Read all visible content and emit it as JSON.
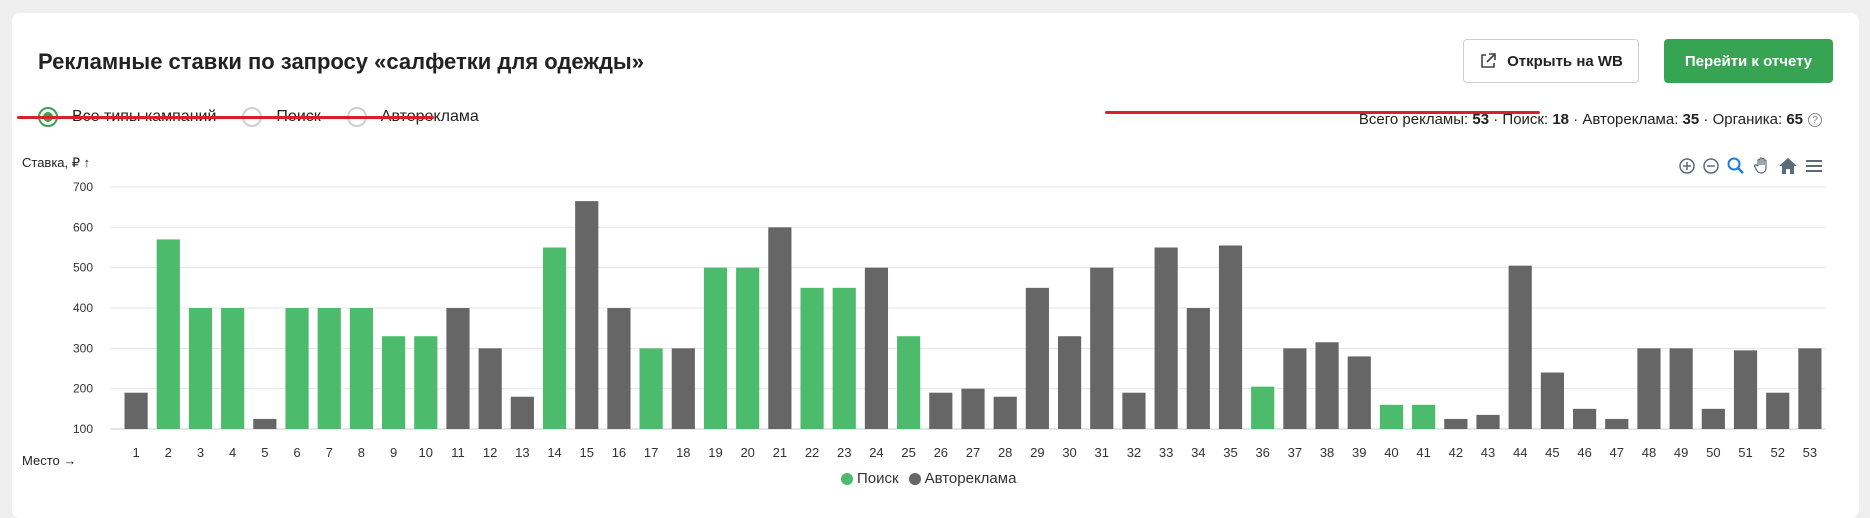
{
  "header": {
    "title": "Рекламные ставки по запросу «салфетки для одежды»",
    "open_wb_label": "Открыть на WB",
    "report_label": "Перейти к отчету"
  },
  "filters": [
    {
      "label": "Все типы кампаний",
      "selected": true
    },
    {
      "label": "Поиск",
      "selected": false
    },
    {
      "label": "Автореклама",
      "selected": false
    }
  ],
  "stats": {
    "total_label": "Всего рекламы:",
    "total_value": "53",
    "search_label": "Поиск:",
    "search_value": "18",
    "auto_label": "Автореклама:",
    "auto_value": "35",
    "organic_label": "Органика:",
    "organic_value": "65",
    "separator": "·",
    "help_glyph": "?"
  },
  "toolbar_icons": [
    "zoom-in-icon",
    "zoom-out-icon",
    "zoom-select-icon",
    "pan-hand-icon",
    "home-icon",
    "menu-icon"
  ],
  "colors": {
    "search": "#4cbb6c",
    "auto": "#666666",
    "accent": "#37a454",
    "underline": "#d8202a"
  },
  "chart_data": {
    "type": "bar",
    "ylabel": "Ставка, ₽ ↑",
    "xlabel": "Место →",
    "ylim": [
      100,
      700
    ],
    "yticks": [
      100,
      200,
      300,
      400,
      500,
      600,
      700
    ],
    "grid": true,
    "legend_position": "bottom-center",
    "categories": [
      "1",
      "2",
      "3",
      "4",
      "5",
      "6",
      "7",
      "8",
      "9",
      "10",
      "11",
      "12",
      "13",
      "14",
      "15",
      "16",
      "17",
      "18",
      "19",
      "20",
      "21",
      "22",
      "23",
      "24",
      "25",
      "26",
      "27",
      "28",
      "29",
      "30",
      "31",
      "32",
      "33",
      "34",
      "35",
      "36",
      "37",
      "38",
      "39",
      "40",
      "41",
      "42",
      "43",
      "44",
      "45",
      "46",
      "47",
      "48",
      "49",
      "50",
      "51",
      "52",
      "53"
    ],
    "values": [
      190,
      570,
      400,
      400,
      125,
      400,
      400,
      400,
      330,
      330,
      400,
      300,
      180,
      550,
      665,
      400,
      300,
      300,
      500,
      500,
      600,
      450,
      450,
      500,
      330,
      190,
      200,
      180,
      450,
      330,
      500,
      190,
      550,
      400,
      555,
      205,
      300,
      315,
      280,
      160,
      160,
      125,
      135,
      505,
      240,
      150,
      125,
      300,
      300,
      150,
      295,
      190,
      300
    ],
    "types": [
      "auto",
      "search",
      "search",
      "search",
      "auto",
      "search",
      "search",
      "search",
      "search",
      "search",
      "auto",
      "auto",
      "auto",
      "search",
      "auto",
      "auto",
      "search",
      "auto",
      "search",
      "search",
      "auto",
      "search",
      "search",
      "auto",
      "search",
      "auto",
      "auto",
      "auto",
      "auto",
      "auto",
      "auto",
      "auto",
      "auto",
      "auto",
      "auto",
      "search",
      "auto",
      "auto",
      "auto",
      "search",
      "search",
      "auto",
      "auto",
      "auto",
      "auto",
      "auto",
      "auto",
      "auto",
      "auto",
      "auto",
      "auto",
      "auto",
      "auto"
    ],
    "series": [
      {
        "name": "Поиск",
        "key": "search"
      },
      {
        "name": "Автореклама",
        "key": "auto"
      }
    ]
  }
}
